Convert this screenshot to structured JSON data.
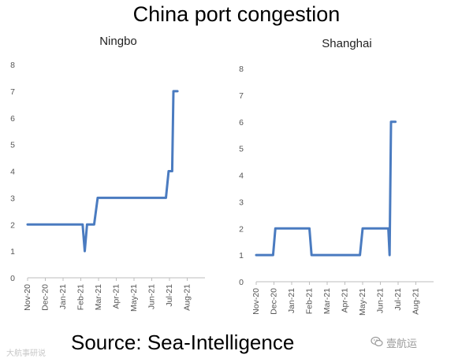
{
  "title": "China port congestion",
  "footer": "Source: Sea-Intelligence",
  "watermark_left": "大航事研说",
  "watermark_right": "壹航运",
  "line_color": "#4a7bc0",
  "chart_data": [
    {
      "type": "line",
      "title": "Ningbo",
      "x_tick_labels": [
        "Nov-20",
        "Dec-20",
        "Jan-21",
        "Feb-21",
        "Mar-21",
        "Apr-21",
        "May-21",
        "Jun-21",
        "Jul-21",
        "Aug-21"
      ],
      "y_tick_labels": [
        "0",
        "1",
        "2",
        "3",
        "4",
        "5",
        "6",
        "7",
        "8"
      ],
      "ylim": [
        0,
        8
      ],
      "x": [
        0,
        3.1,
        3.22,
        3.35,
        3.75,
        3.95,
        7.8,
        7.95,
        8.15,
        8.22,
        8.45
      ],
      "y": [
        2,
        2,
        1,
        2,
        2,
        3,
        3,
        4,
        4,
        7,
        7
      ],
      "grid": false
    },
    {
      "type": "line",
      "title": "Shanghai",
      "x_tick_labels": [
        "Nov-20",
        "Dec-20",
        "Jan-21",
        "Feb-21",
        "Mar-21",
        "Apr-21",
        "May-21",
        "Jun-21",
        "Jul-21",
        "Aug-21"
      ],
      "y_tick_labels": [
        "0",
        "1",
        "2",
        "3",
        "4",
        "5",
        "6",
        "7",
        "8"
      ],
      "ylim": [
        0,
        8
      ],
      "x": [
        0,
        0.95,
        1.08,
        3.0,
        3.12,
        5.85,
        6.0,
        7.45,
        7.52,
        7.6,
        7.85
      ],
      "y": [
        1,
        1,
        2,
        2,
        1,
        1,
        2,
        2,
        1,
        6,
        6
      ],
      "grid": false
    }
  ]
}
